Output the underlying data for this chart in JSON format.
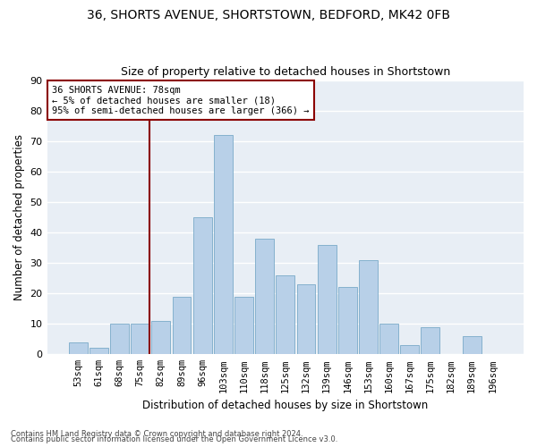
{
  "title1": "36, SHORTS AVENUE, SHORTSTOWN, BEDFORD, MK42 0FB",
  "title2": "Size of property relative to detached houses in Shortstown",
  "xlabel": "Distribution of detached houses by size in Shortstown",
  "ylabel": "Number of detached properties",
  "categories": [
    "53sqm",
    "61sqm",
    "68sqm",
    "75sqm",
    "82sqm",
    "89sqm",
    "96sqm",
    "103sqm",
    "110sqm",
    "118sqm",
    "125sqm",
    "132sqm",
    "139sqm",
    "146sqm",
    "153sqm",
    "160sqm",
    "167sqm",
    "175sqm",
    "182sqm",
    "189sqm",
    "196sqm"
  ],
  "values": [
    4,
    2,
    10,
    10,
    11,
    19,
    45,
    72,
    19,
    38,
    26,
    23,
    36,
    22,
    31,
    10,
    3,
    9,
    0,
    6,
    0
  ],
  "bar_color": "#b8d0e8",
  "bar_edge_color": "#7aaac8",
  "vline_x_index": 3,
  "vline_color": "#8b0000",
  "annotation_line1": "36 SHORTS AVENUE: 78sqm",
  "annotation_line2": "← 5% of detached houses are smaller (18)",
  "annotation_line3": "95% of semi-detached houses are larger (366) →",
  "annotation_box_color": "white",
  "annotation_box_edge_color": "#8b0000",
  "ylim": [
    0,
    90
  ],
  "yticks": [
    0,
    10,
    20,
    30,
    40,
    50,
    60,
    70,
    80,
    90
  ],
  "background_color": "#e8eef5",
  "grid_color": "white",
  "footer1": "Contains HM Land Registry data © Crown copyright and database right 2024.",
  "footer2": "Contains public sector information licensed under the Open Government Licence v3.0."
}
